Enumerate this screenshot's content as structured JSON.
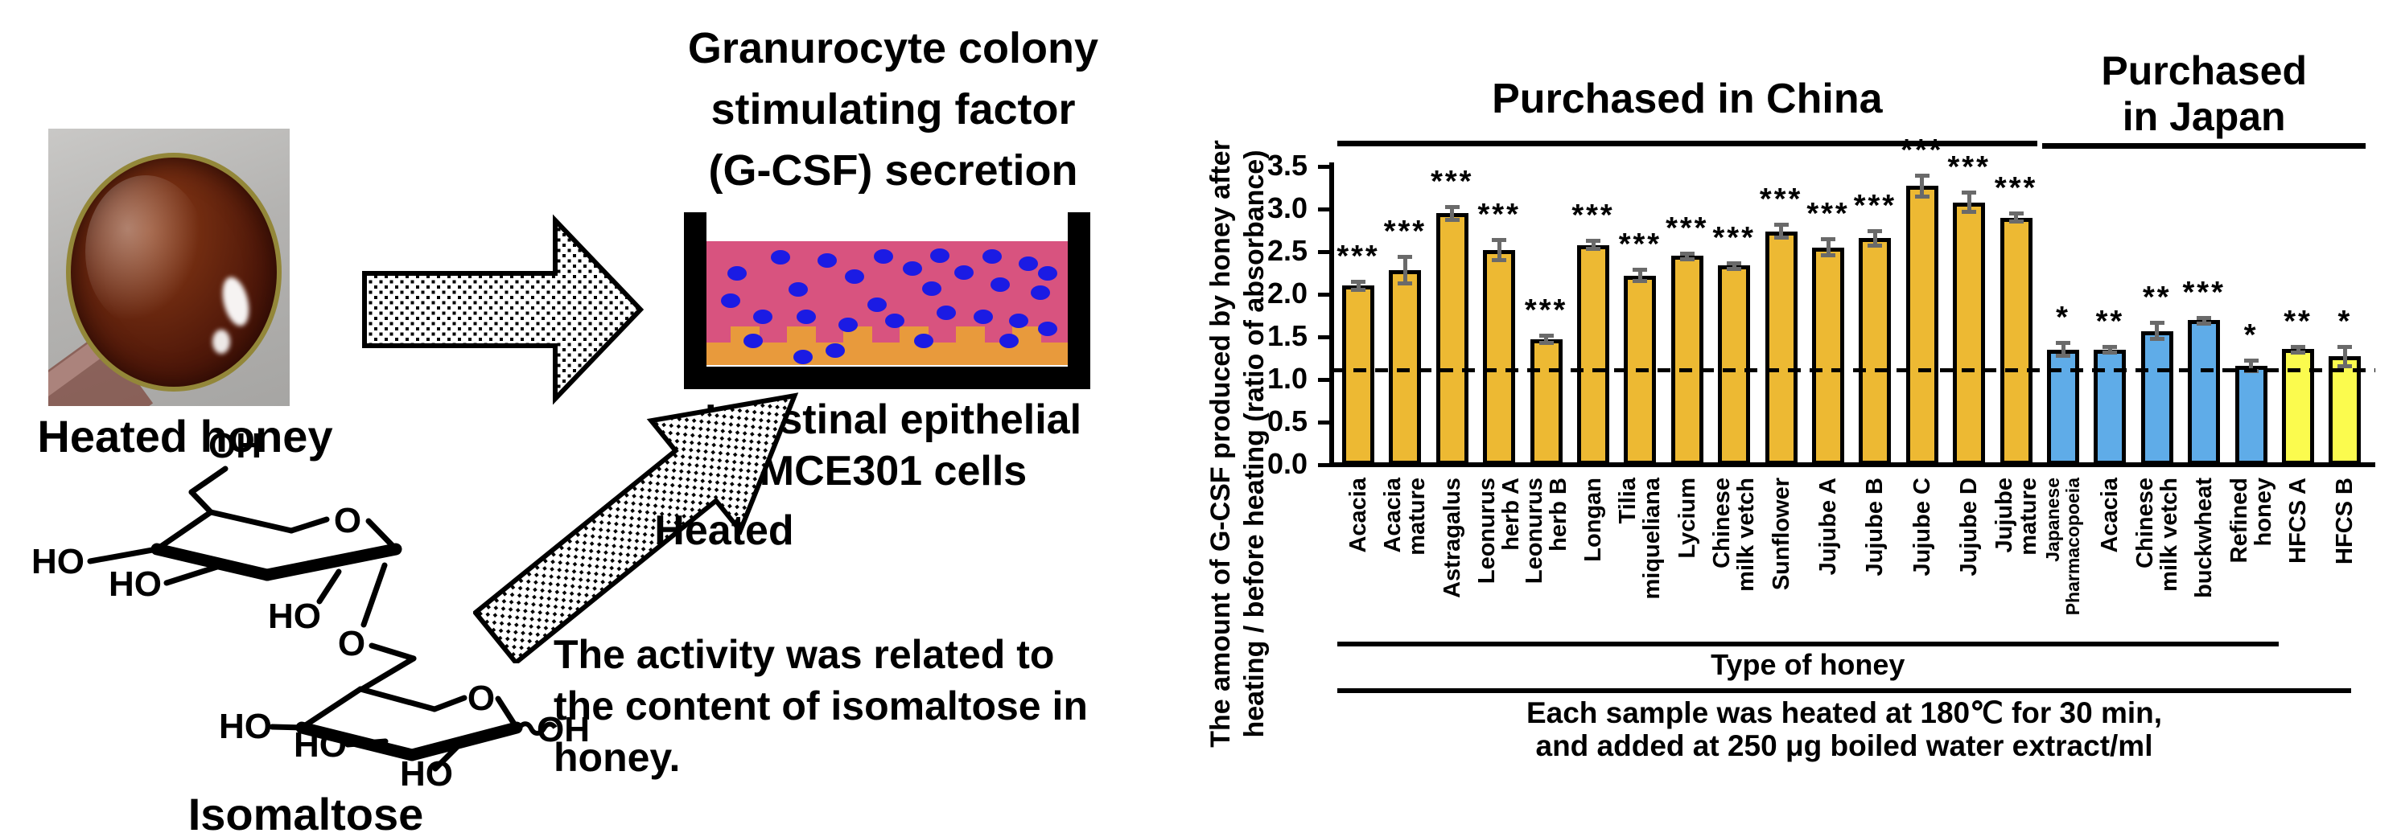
{
  "left_panel": {
    "heated_honey_label": "Heated honey",
    "gcsf_title": "Granurocyte colony\nstimulating factor\n(G-CSF) secretion",
    "dish_caption": "Intestinal epithelial\nMCE301 cells",
    "heated_label": "Heated",
    "activity_text": "The activity was related to\nthe content of isomaltose in\nhoney.",
    "isomaltose_label": "Isomaltose",
    "structure_labels": [
      "OH",
      "HO",
      "HO",
      "O",
      "HO",
      "O",
      "O",
      "HO",
      "HO",
      "OH",
      "HO"
    ]
  },
  "chart": {
    "y_axis_label": "The amount of G-CSF produced by honey after\nheating / before heating (ratio of absorbance)",
    "japan_title_display": "Purchased\nin Japan",
    "caption": "Each sample was heated at 180℃ for 30 min,\nand added at 250 μg boiled water extract/ml"
  },
  "chart_data": {
    "type": "bar",
    "title": "",
    "xlabel": "Type of honey",
    "ylabel": "The amount of G-CSF produced by honey after heating / before heating (ratio of absorbance)",
    "ylim": [
      0,
      3.5
    ],
    "ytick_labels": [
      "0.0",
      "0.5",
      "1.0",
      "1.5",
      "2.0",
      "2.5",
      "3.0",
      "3.5"
    ],
    "reference_line": 1.1,
    "grid": false,
    "legend": "none",
    "colors": {
      "china": "#EDB933",
      "japan_honey": "#5FACE8",
      "japan_hfcs": "#FBFB4E",
      "error": "#6a6a6a"
    },
    "groups": [
      {
        "label": "Purchased  in China",
        "from": 0,
        "to": 14
      },
      {
        "label": "Purchased in Japan",
        "from": 15,
        "to": 21
      }
    ],
    "x_bracket": {
      "from": 0,
      "to": 19
    },
    "bars": [
      {
        "label": "Acacia",
        "value": 2.1,
        "error": 0.05,
        "sig": "***",
        "color": "china"
      },
      {
        "label": "Acacia\nmature",
        "value": 2.28,
        "error": 0.16,
        "sig": "***",
        "color": "china"
      },
      {
        "label": "Astragalus",
        "value": 2.95,
        "error": 0.08,
        "sig": "***",
        "color": "china"
      },
      {
        "label": "Leonurus\nherb A",
        "value": 2.52,
        "error": 0.12,
        "sig": "***",
        "color": "china"
      },
      {
        "label": "Leonurus\nherb B",
        "value": 1.47,
        "error": 0.05,
        "sig": "***",
        "color": "china"
      },
      {
        "label": "Longan",
        "value": 2.58,
        "error": 0.05,
        "sig": "***",
        "color": "china"
      },
      {
        "label": "Tilia\nmiqueliana",
        "value": 2.22,
        "error": 0.07,
        "sig": "***",
        "color": "china"
      },
      {
        "label": "Lycium",
        "value": 2.45,
        "error": 0.03,
        "sig": "***",
        "color": "china"
      },
      {
        "label": "Chinese\nmilk vetch",
        "value": 2.34,
        "error": 0.03,
        "sig": "***",
        "color": "china"
      },
      {
        "label": "Sunflower",
        "value": 2.74,
        "error": 0.08,
        "sig": "***",
        "color": "china"
      },
      {
        "label": "Jujube A",
        "value": 2.55,
        "error": 0.1,
        "sig": "***",
        "color": "china"
      },
      {
        "label": "Jujube B",
        "value": 2.66,
        "error": 0.09,
        "sig": "***",
        "color": "china"
      },
      {
        "label": "Jujube C",
        "value": 3.27,
        "error": 0.13,
        "sig": "***",
        "color": "china"
      },
      {
        "label": "Jujube D",
        "value": 3.08,
        "error": 0.12,
        "sig": "***",
        "color": "china"
      },
      {
        "label": "Jujube\nmature",
        "value": 2.9,
        "error": 0.05,
        "sig": "***",
        "color": "china"
      },
      {
        "label": "Japanese\nPharmacopoeia",
        "value": 1.35,
        "error": 0.08,
        "sig": "*",
        "color": "japan_honey",
        "small_label": true
      },
      {
        "label": "Acacia",
        "value": 1.35,
        "error": 0.04,
        "sig": "**",
        "color": "japan_honey"
      },
      {
        "label": "Chinese\nmilk vetch",
        "value": 1.57,
        "error": 0.1,
        "sig": "**",
        "color": "japan_honey"
      },
      {
        "label": "buckwheat",
        "value": 1.7,
        "error": 0.03,
        "sig": "***",
        "color": "japan_honey"
      },
      {
        "label": "Refined\nhoney",
        "value": 1.16,
        "error": 0.07,
        "sig": "*",
        "color": "japan_honey"
      },
      {
        "label": "HFCS A",
        "value": 1.36,
        "error": 0.03,
        "sig": "**",
        "color": "japan_hfcs"
      },
      {
        "label": "HFCS B",
        "value": 1.27,
        "error": 0.12,
        "sig": "*",
        "color": "japan_hfcs"
      }
    ]
  }
}
